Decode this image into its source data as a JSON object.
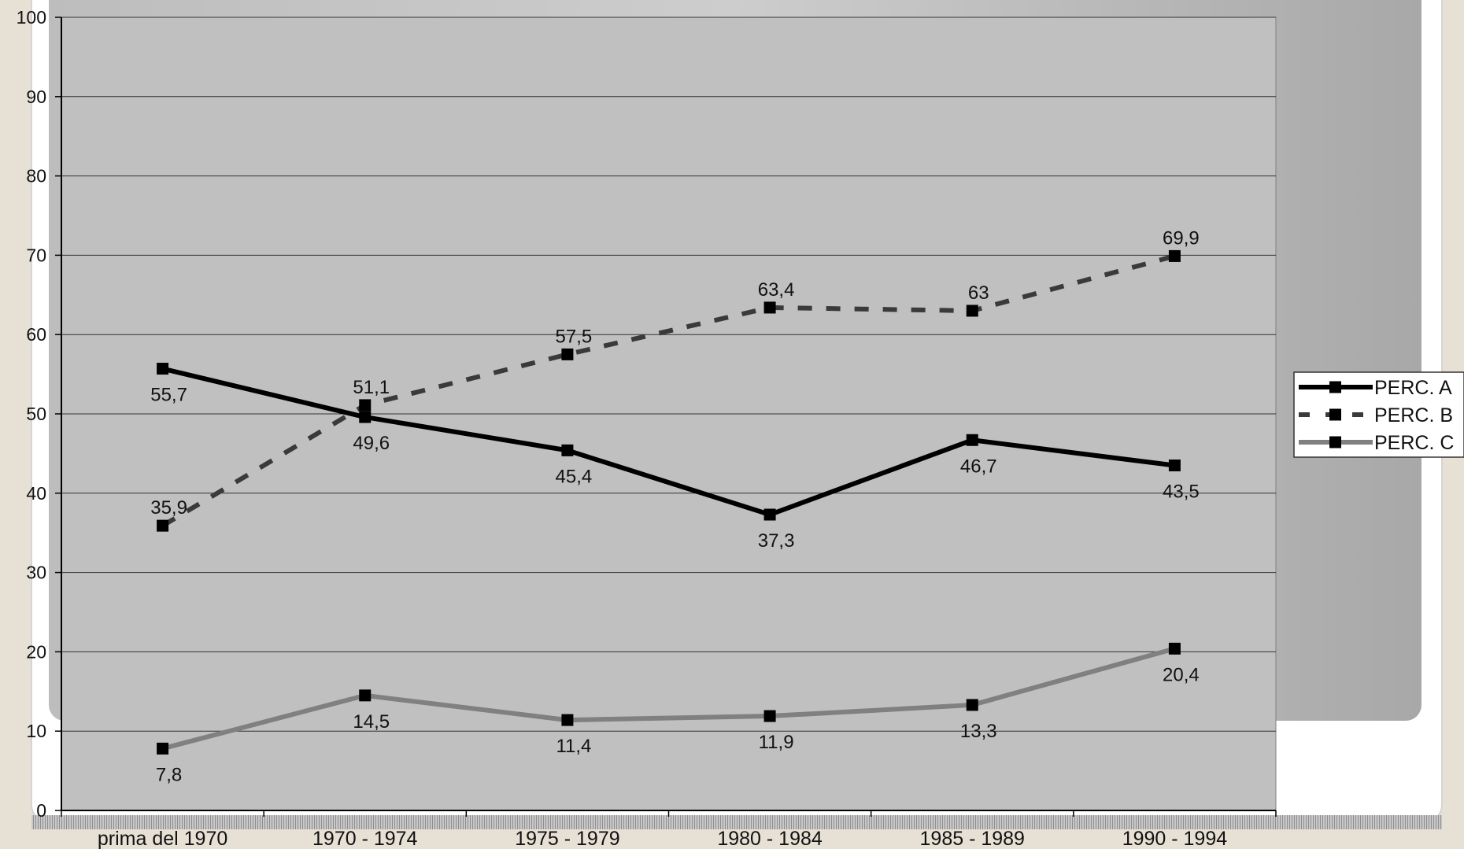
{
  "colors": {
    "page_bg": "#e7e1d5",
    "plot_bg": "#c0c0c0",
    "series_a": "#000000",
    "series_b": "#3a3a3a",
    "series_c": "#808080"
  },
  "chart_data": {
    "type": "line",
    "title": "",
    "xlabel": "",
    "ylabel": "",
    "categories": [
      "prima del 1970",
      "1970 - 1974",
      "1975 - 1979",
      "1980 - 1984",
      "1985 - 1989",
      "1990 - 1994"
    ],
    "ylim": [
      0,
      100
    ],
    "yticks": [
      "0",
      "10",
      "20",
      "30",
      "40",
      "50",
      "60",
      "70",
      "80",
      "90",
      "100"
    ],
    "grid": true,
    "legend_position": "right",
    "series": [
      {
        "name": "PERC. A",
        "style": "solid",
        "values": [
          55.7,
          49.6,
          45.4,
          37.3,
          46.7,
          43.5
        ],
        "labels": [
          "55,7",
          "49,6",
          "45,4",
          "37,3",
          "46,7",
          "43,5"
        ],
        "label_positions": [
          "below",
          "below",
          "below",
          "below",
          "below",
          "below"
        ]
      },
      {
        "name": "PERC. B",
        "style": "dashed",
        "values": [
          35.9,
          51.1,
          57.5,
          63.4,
          63,
          69.9
        ],
        "labels": [
          "35,9",
          "51,1",
          "57,5",
          "63,4",
          "63",
          "69,9"
        ],
        "label_positions": [
          "above",
          "above",
          "above",
          "above",
          "above",
          "above"
        ]
      },
      {
        "name": "PERC. C",
        "style": "solid",
        "values": [
          7.8,
          14.5,
          11.4,
          11.9,
          13.3,
          20.4
        ],
        "labels": [
          "7,8",
          "14,5",
          "11,4",
          "11,9",
          "13,3",
          "20,4"
        ],
        "label_positions": [
          "below",
          "below",
          "below",
          "below",
          "below",
          "below"
        ]
      }
    ]
  }
}
